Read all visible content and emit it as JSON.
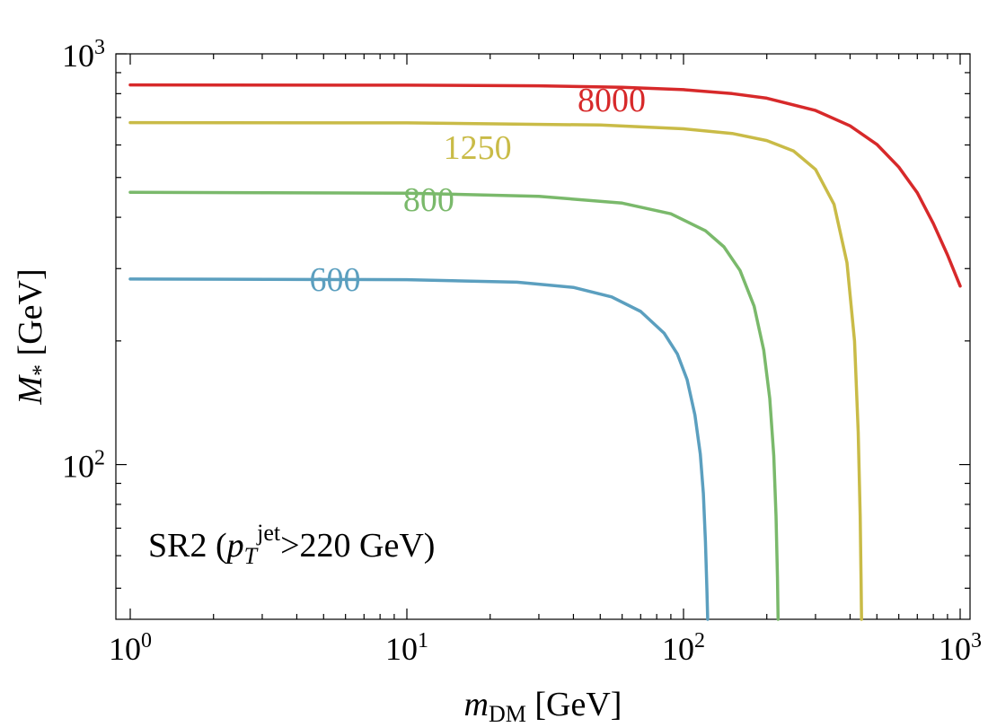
{
  "chart_data": {
    "type": "line",
    "title": "",
    "xscale": "log",
    "yscale": "log",
    "xlim": [
      1,
      1000
    ],
    "ylim": [
      42,
      1000
    ],
    "xlabel": {
      "var": "m",
      "sub": "DM",
      "unit": " [GeV]"
    },
    "ylabel": {
      "var": "M",
      "sub": "*",
      "unit": " [GeV]"
    },
    "x_ticks": [
      {
        "base": "10",
        "exp": "0",
        "value": 1
      },
      {
        "base": "10",
        "exp": "1",
        "value": 10
      },
      {
        "base": "10",
        "exp": "2",
        "value": 100
      },
      {
        "base": "10",
        "exp": "3",
        "value": 1000
      }
    ],
    "y_ticks": [
      {
        "base": "10",
        "exp": "2",
        "value": 100
      },
      {
        "base": "10",
        "exp": "3",
        "value": 1000
      }
    ],
    "annotation": {
      "prefix": "SR2 (",
      "var": "p",
      "sub": "T",
      "sup": "jet",
      "suffix": ">220 GeV)"
    },
    "series": [
      {
        "name": "600",
        "color": "#5b9fbf",
        "label_at": [
          5.5,
          265
        ],
        "x": [
          1,
          10,
          25,
          40,
          55,
          70,
          85,
          95,
          103,
          110,
          115,
          118,
          120,
          121.5,
          122.3
        ],
        "y": [
          283,
          282,
          278,
          270,
          256,
          236,
          209,
          186,
          161,
          132,
          106,
          85,
          65,
          50,
          42
        ]
      },
      {
        "name": "800",
        "color": "#7ab96b",
        "label_at": [
          12,
          415
        ],
        "x": [
          1,
          10,
          30,
          60,
          90,
          120,
          140,
          160,
          180,
          195,
          205,
          212,
          216,
          218.5,
          219.8
        ],
        "y": [
          460,
          458,
          450,
          433,
          408,
          371,
          339,
          297,
          243,
          190,
          145,
          105,
          75,
          53,
          42
        ]
      },
      {
        "name": "1250",
        "color": "#c9bb47",
        "label_at": [
          18,
          555
        ],
        "x": [
          1,
          10,
          50,
          100,
          150,
          200,
          250,
          300,
          350,
          390,
          415,
          428,
          435,
          438.5,
          440
        ],
        "y": [
          680,
          679,
          671,
          657,
          640,
          615,
          580,
          523,
          430,
          310,
          200,
          120,
          75,
          52,
          42
        ]
      },
      {
        "name": "8000",
        "color": "#d7292a",
        "label_at": [
          55,
          725
        ],
        "x": [
          1,
          10,
          30,
          60,
          100,
          150,
          200,
          300,
          400,
          500,
          600,
          700,
          800,
          900,
          1000
        ],
        "y": [
          840,
          839,
          836,
          829,
          818,
          800,
          780,
          728,
          668,
          602,
          530,
          459,
          386,
          324,
          272
        ]
      }
    ]
  }
}
